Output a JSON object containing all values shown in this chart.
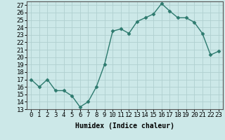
{
  "xlabel": "Humidex (Indice chaleur)",
  "ylabel": "",
  "x_values": [
    0,
    1,
    2,
    3,
    4,
    5,
    6,
    7,
    8,
    9,
    10,
    11,
    12,
    13,
    14,
    15,
    16,
    17,
    18,
    19,
    20,
    21,
    22,
    23
  ],
  "y_values": [
    17,
    16,
    17,
    15.5,
    15.5,
    14.8,
    13.3,
    14,
    16,
    19,
    23.5,
    23.8,
    23.2,
    24.8,
    25.3,
    25.8,
    27.2,
    26.2,
    25.3,
    25.3,
    24.7,
    23.2,
    20.3,
    20.8
  ],
  "line_color": "#2d7a6e",
  "marker": "D",
  "marker_size": 2.5,
  "bg_color": "#cce8e8",
  "grid_color": "#b0d0d0",
  "ylim": [
    13,
    27.5
  ],
  "yticks": [
    13,
    14,
    15,
    16,
    17,
    18,
    19,
    20,
    21,
    22,
    23,
    24,
    25,
    26,
    27
  ],
  "xlim": [
    -0.5,
    23.5
  ],
  "label_fontsize": 7,
  "tick_fontsize": 6.5,
  "spine_color": "#555555"
}
